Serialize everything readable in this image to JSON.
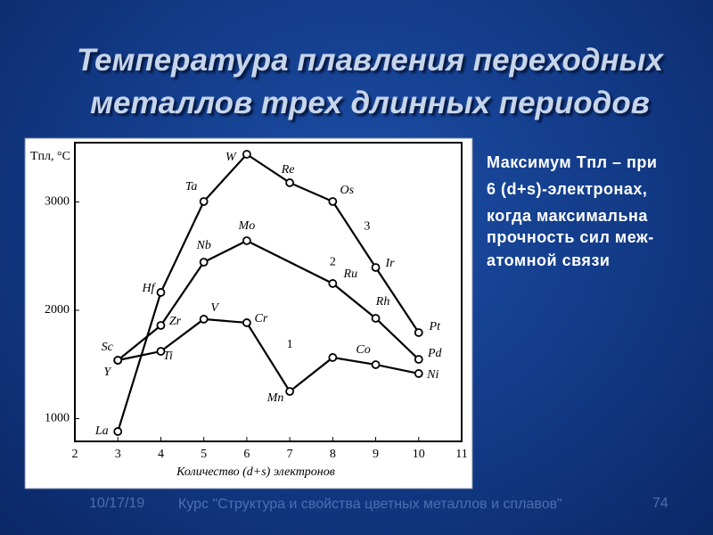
{
  "title": [
    "Температура плавления переходных",
    "металлов трех длинных периодов"
  ],
  "side_text": [
    "Максимум Tпл – при",
    "6 (d+s)-электронах,",
    "когда максимальна",
    "прочность сил меж-",
    "атомной связи"
  ],
  "footer": {
    "date": "10/17/19",
    "course": "Курс \"Структура и свойства цветных металлов и сплавов\"",
    "page": "74"
  },
  "chart_data": {
    "type": "line",
    "y_label": "Tпл, °C",
    "x_label": "Количество (d+s) электронов",
    "xlim": [
      2,
      11
    ],
    "xticks": [
      2,
      3,
      4,
      5,
      6,
      7,
      8,
      9,
      10,
      11
    ],
    "ylim": [
      790,
      3547
    ],
    "yticks": [
      1000,
      2000,
      3000
    ],
    "series": [
      {
        "name": "1",
        "color": "#000000",
        "x": [
          3,
          4,
          5,
          6,
          7,
          8,
          9,
          10
        ],
        "values": [
          1539,
          1621,
          1918,
          1885,
          1251,
          1564,
          1498,
          1416
        ],
        "point_labels": [
          "Sc",
          "Ti",
          "V",
          "Cr",
          "Mn",
          null,
          "Co",
          "Ni"
        ]
      },
      {
        "name": "2",
        "color": "#000000",
        "x": [
          3,
          4,
          5,
          6,
          8,
          9,
          10
        ],
        "values": [
          1539,
          1860,
          2444,
          2642,
          2247,
          1926,
          1547
        ],
        "point_labels": [
          "Y",
          "Zr",
          "Nb",
          "Mo",
          "Ru",
          "Rh",
          "Pd"
        ]
      },
      {
        "name": "3",
        "color": "#000000",
        "x": [
          3,
          4,
          5,
          6,
          7,
          8,
          9,
          10
        ],
        "values": [
          881,
          2165,
          3004,
          3440,
          3177,
          3004,
          2395,
          1794
        ],
        "point_labels": [
          "La",
          "Hf",
          "Ta",
          "W",
          "Re",
          "Os",
          "Ir",
          "Pt"
        ]
      }
    ]
  }
}
